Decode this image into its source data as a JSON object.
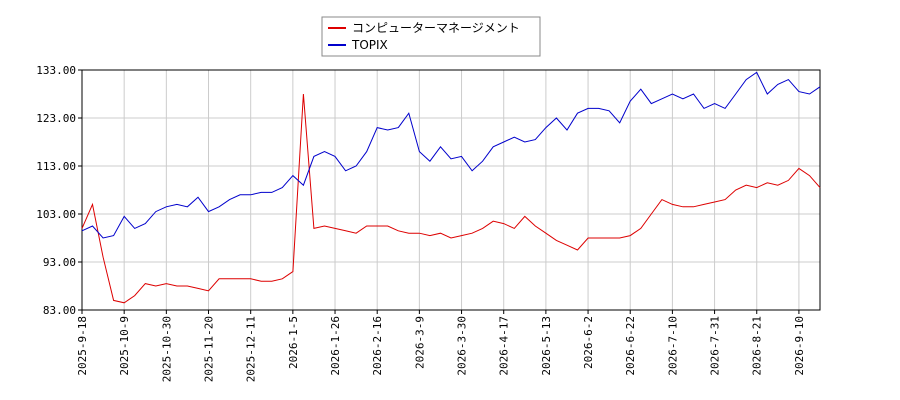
{
  "chart_data": {
    "type": "line",
    "categories": [
      "2025-9-18",
      null,
      null,
      null,
      "2025-10-9",
      null,
      null,
      null,
      "2025-10-30",
      null,
      null,
      null,
      "2025-11-20",
      null,
      null,
      null,
      "2025-12-11",
      null,
      null,
      null,
      "2026-1-5",
      null,
      null,
      null,
      "2026-1-26",
      null,
      null,
      null,
      "2026-2-16",
      null,
      null,
      null,
      "2026-3-9",
      null,
      null,
      null,
      "2026-3-30",
      null,
      null,
      null,
      "2026-4-17",
      null,
      null,
      null,
      "2026-5-13",
      null,
      null,
      null,
      "2026-6-2",
      null,
      null,
      null,
      "2026-6-22",
      null,
      null,
      null,
      "2026-7-10",
      null,
      null,
      null,
      "2026-7-31",
      null,
      null,
      null,
      "2026-8-21",
      null,
      null,
      null,
      "2026-9-10",
      null,
      null
    ],
    "series": [
      {
        "name": "コンピューターマネージメント",
        "color": "#dd0000",
        "values": [
          100,
          105,
          94,
          85,
          84.5,
          86,
          88.5,
          88,
          88.5,
          88,
          88,
          87.5,
          87,
          89.5,
          89.5,
          89.5,
          89.5,
          89,
          89,
          89.5,
          91,
          128,
          100,
          100.5,
          100,
          99.5,
          99,
          100.5,
          100.5,
          100.5,
          99.5,
          99,
          99,
          98.5,
          99,
          98,
          98.5,
          99,
          100,
          101.5,
          101,
          100,
          102.5,
          100.5,
          99,
          97.5,
          96.5,
          95.5,
          98,
          98,
          98,
          98,
          98.5,
          100,
          103,
          106,
          105,
          104.5,
          104.5,
          105,
          105.5,
          106,
          108,
          109,
          108.5,
          109.5,
          109,
          110,
          112.5,
          111,
          108.5
        ]
      },
      {
        "name": "TOPIX",
        "color": "#0000cc",
        "values": [
          99.5,
          100.5,
          98,
          98.5,
          102.5,
          100,
          101,
          103.5,
          104.5,
          105,
          104.5,
          106.5,
          103.5,
          104.5,
          106,
          107,
          107,
          107.5,
          107.5,
          108.5,
          111,
          109,
          115,
          116,
          115,
          112,
          113,
          116,
          121,
          120.5,
          121,
          124,
          116,
          114,
          117,
          114.5,
          115,
          112,
          114,
          117,
          118,
          119,
          118,
          118.5,
          121,
          123,
          120.5,
          124,
          125,
          125,
          124.5,
          122,
          126.5,
          129,
          126,
          127,
          128,
          127,
          128,
          125,
          126,
          125,
          128,
          131,
          132.5,
          128,
          130,
          131,
          128.5,
          128,
          129.5
        ]
      }
    ],
    "ylim": [
      83,
      133
    ],
    "yticks": [
      {
        "value": 83,
        "label": "83.00"
      },
      {
        "value": 93,
        "label": "93.00"
      },
      {
        "value": 103,
        "label": "103.00"
      },
      {
        "value": 113,
        "label": "113.00"
      },
      {
        "value": 123,
        "label": "123.00"
      },
      {
        "value": 133,
        "label": "133.00"
      }
    ],
    "grid": true,
    "legend": "top"
  }
}
